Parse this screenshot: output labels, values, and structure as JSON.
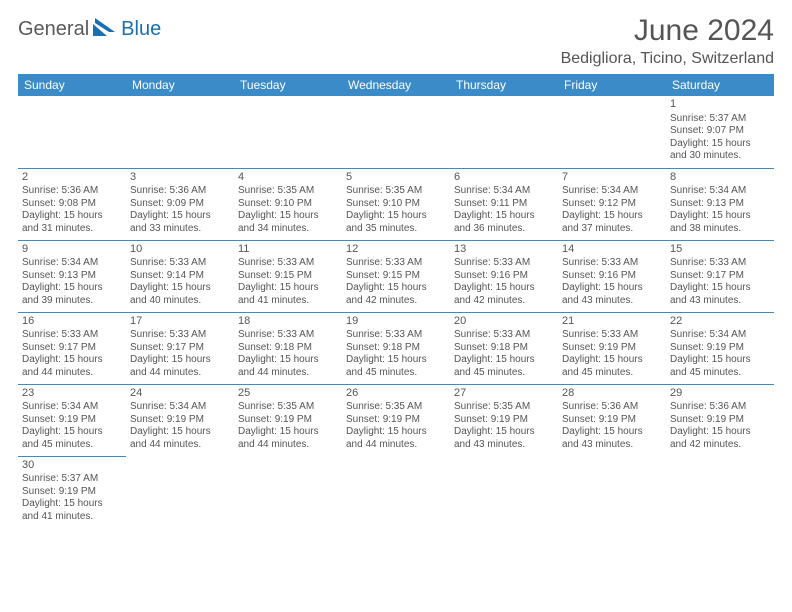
{
  "brand": {
    "part1": "General",
    "part2": "Blue"
  },
  "title": "June 2024",
  "location": "Bedigliora, Ticino, Switzerland",
  "colors": {
    "header_bg": "#3b8bc9",
    "header_text": "#ffffff",
    "border": "#3b8bc9",
    "brand_gray": "#5a5a5a",
    "brand_blue": "#1a6fb3",
    "text": "#555555",
    "background": "#ffffff"
  },
  "weekdays": [
    "Sunday",
    "Monday",
    "Tuesday",
    "Wednesday",
    "Thursday",
    "Friday",
    "Saturday"
  ],
  "grid": {
    "columns": 7,
    "rows": 6,
    "start_weekday_index": 6,
    "days_in_month": 30
  },
  "days": {
    "1": {
      "sunrise": "5:37 AM",
      "sunset": "9:07 PM",
      "daylight": "15 hours and 30 minutes."
    },
    "2": {
      "sunrise": "5:36 AM",
      "sunset": "9:08 PM",
      "daylight": "15 hours and 31 minutes."
    },
    "3": {
      "sunrise": "5:36 AM",
      "sunset": "9:09 PM",
      "daylight": "15 hours and 33 minutes."
    },
    "4": {
      "sunrise": "5:35 AM",
      "sunset": "9:10 PM",
      "daylight": "15 hours and 34 minutes."
    },
    "5": {
      "sunrise": "5:35 AM",
      "sunset": "9:10 PM",
      "daylight": "15 hours and 35 minutes."
    },
    "6": {
      "sunrise": "5:34 AM",
      "sunset": "9:11 PM",
      "daylight": "15 hours and 36 minutes."
    },
    "7": {
      "sunrise": "5:34 AM",
      "sunset": "9:12 PM",
      "daylight": "15 hours and 37 minutes."
    },
    "8": {
      "sunrise": "5:34 AM",
      "sunset": "9:13 PM",
      "daylight": "15 hours and 38 minutes."
    },
    "9": {
      "sunrise": "5:34 AM",
      "sunset": "9:13 PM",
      "daylight": "15 hours and 39 minutes."
    },
    "10": {
      "sunrise": "5:33 AM",
      "sunset": "9:14 PM",
      "daylight": "15 hours and 40 minutes."
    },
    "11": {
      "sunrise": "5:33 AM",
      "sunset": "9:15 PM",
      "daylight": "15 hours and 41 minutes."
    },
    "12": {
      "sunrise": "5:33 AM",
      "sunset": "9:15 PM",
      "daylight": "15 hours and 42 minutes."
    },
    "13": {
      "sunrise": "5:33 AM",
      "sunset": "9:16 PM",
      "daylight": "15 hours and 42 minutes."
    },
    "14": {
      "sunrise": "5:33 AM",
      "sunset": "9:16 PM",
      "daylight": "15 hours and 43 minutes."
    },
    "15": {
      "sunrise": "5:33 AM",
      "sunset": "9:17 PM",
      "daylight": "15 hours and 43 minutes."
    },
    "16": {
      "sunrise": "5:33 AM",
      "sunset": "9:17 PM",
      "daylight": "15 hours and 44 minutes."
    },
    "17": {
      "sunrise": "5:33 AM",
      "sunset": "9:17 PM",
      "daylight": "15 hours and 44 minutes."
    },
    "18": {
      "sunrise": "5:33 AM",
      "sunset": "9:18 PM",
      "daylight": "15 hours and 44 minutes."
    },
    "19": {
      "sunrise": "5:33 AM",
      "sunset": "9:18 PM",
      "daylight": "15 hours and 45 minutes."
    },
    "20": {
      "sunrise": "5:33 AM",
      "sunset": "9:18 PM",
      "daylight": "15 hours and 45 minutes."
    },
    "21": {
      "sunrise": "5:33 AM",
      "sunset": "9:19 PM",
      "daylight": "15 hours and 45 minutes."
    },
    "22": {
      "sunrise": "5:34 AM",
      "sunset": "9:19 PM",
      "daylight": "15 hours and 45 minutes."
    },
    "23": {
      "sunrise": "5:34 AM",
      "sunset": "9:19 PM",
      "daylight": "15 hours and 45 minutes."
    },
    "24": {
      "sunrise": "5:34 AM",
      "sunset": "9:19 PM",
      "daylight": "15 hours and 44 minutes."
    },
    "25": {
      "sunrise": "5:35 AM",
      "sunset": "9:19 PM",
      "daylight": "15 hours and 44 minutes."
    },
    "26": {
      "sunrise": "5:35 AM",
      "sunset": "9:19 PM",
      "daylight": "15 hours and 44 minutes."
    },
    "27": {
      "sunrise": "5:35 AM",
      "sunset": "9:19 PM",
      "daylight": "15 hours and 43 minutes."
    },
    "28": {
      "sunrise": "5:36 AM",
      "sunset": "9:19 PM",
      "daylight": "15 hours and 43 minutes."
    },
    "29": {
      "sunrise": "5:36 AM",
      "sunset": "9:19 PM",
      "daylight": "15 hours and 42 minutes."
    },
    "30": {
      "sunrise": "5:37 AM",
      "sunset": "9:19 PM",
      "daylight": "15 hours and 41 minutes."
    }
  },
  "labels": {
    "sunrise_prefix": "Sunrise: ",
    "sunset_prefix": "Sunset: ",
    "daylight_prefix": "Daylight: "
  }
}
